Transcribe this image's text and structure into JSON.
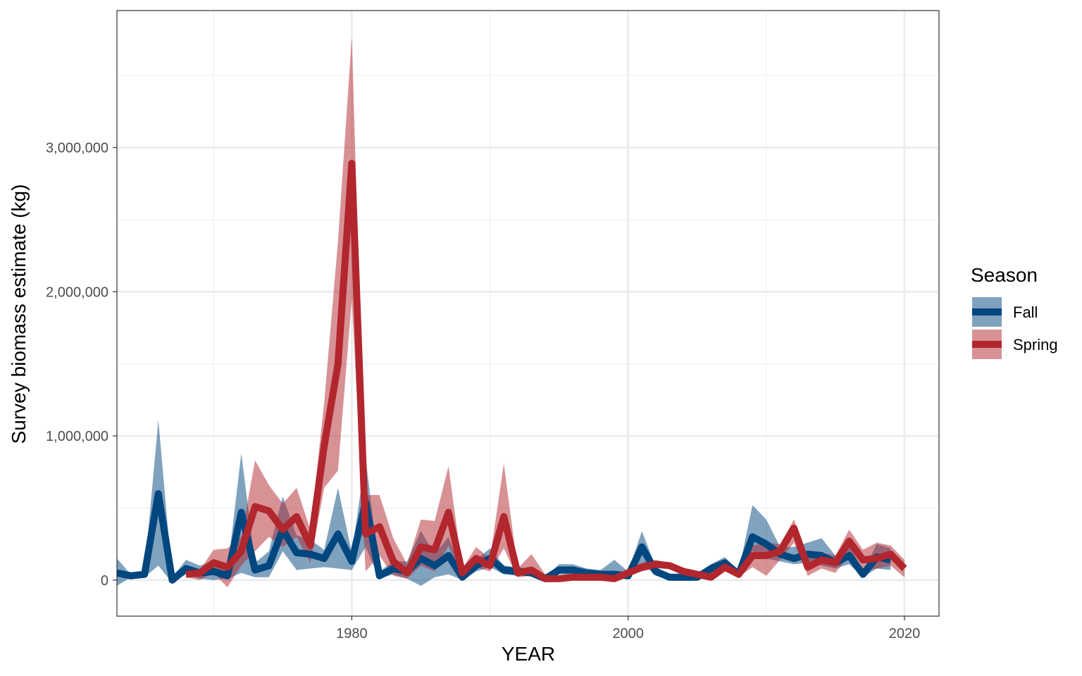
{
  "chart_data": {
    "type": "line",
    "xlabel": "YEAR",
    "ylabel": "Survey biomass estimate (kg)",
    "xlim": [
      1963,
      2022.5
    ],
    "ylim": [
      -250000,
      3950000
    ],
    "x_ticks": [
      1980,
      2000,
      2020
    ],
    "x_tick_labels": [
      "1980",
      "2000",
      "2020"
    ],
    "x_minor_ticks": [
      1970,
      1990,
      2010
    ],
    "y_ticks": [
      0,
      1000000,
      2000000,
      3000000
    ],
    "y_tick_labels": [
      "0",
      "1,000,000",
      "2,000,000",
      "3,000,000"
    ],
    "y_minor_ticks": [
      500000,
      1500000,
      2500000,
      3500000
    ],
    "grid": true,
    "legend": {
      "title": "Season",
      "position": "right"
    },
    "series": [
      {
        "name": "Fall",
        "color": "#00467f",
        "ribbon_color": "#00467f",
        "x": [
          1963,
          1964,
          1965,
          1966,
          1967,
          1968,
          1969,
          1970,
          1971,
          1972,
          1973,
          1974,
          1975,
          1976,
          1977,
          1978,
          1979,
          1980,
          1981,
          1982,
          1983,
          1984,
          1985,
          1986,
          1987,
          1988,
          1989,
          1990,
          1991,
          1992,
          1993,
          1994,
          1995,
          1996,
          1997,
          1998,
          1999,
          2000,
          2001,
          2002,
          2003,
          2004,
          2005,
          2006,
          2007,
          2008,
          2009,
          2010,
          2011,
          2012,
          2013,
          2014,
          2015,
          2016,
          2017,
          2018,
          2019
        ],
        "values": [
          50000,
          30000,
          40000,
          600000,
          0,
          80000,
          50000,
          60000,
          30000,
          470000,
          70000,
          100000,
          350000,
          190000,
          180000,
          150000,
          320000,
          130000,
          540000,
          30000,
          80000,
          60000,
          150000,
          100000,
          170000,
          20000,
          100000,
          150000,
          70000,
          60000,
          50000,
          10000,
          70000,
          70000,
          50000,
          40000,
          40000,
          30000,
          230000,
          60000,
          20000,
          20000,
          20000,
          80000,
          120000,
          40000,
          300000,
          250000,
          180000,
          150000,
          180000,
          170000,
          120000,
          170000,
          40000,
          160000,
          140000
        ],
        "lower": [
          -40000,
          20000,
          20000,
          100000,
          -20000,
          40000,
          10000,
          0,
          10000,
          50000,
          20000,
          20000,
          200000,
          70000,
          80000,
          90000,
          80000,
          70000,
          230000,
          10000,
          40000,
          10000,
          -40000,
          20000,
          40000,
          0,
          60000,
          90000,
          40000,
          30000,
          30000,
          0,
          40000,
          40000,
          30000,
          20000,
          20000,
          10000,
          120000,
          30000,
          10000,
          10000,
          10000,
          50000,
          80000,
          20000,
          200000,
          150000,
          130000,
          110000,
          120000,
          100000,
          80000,
          110000,
          20000,
          80000,
          70000
        ],
        "upper": [
          150000,
          40000,
          60000,
          1110000,
          20000,
          140000,
          100000,
          130000,
          60000,
          880000,
          120000,
          200000,
          580000,
          310000,
          280000,
          210000,
          640000,
          190000,
          850000,
          60000,
          130000,
          130000,
          340000,
          180000,
          300000,
          40000,
          140000,
          220000,
          100000,
          90000,
          80000,
          20000,
          110000,
          110000,
          80000,
          70000,
          140000,
          60000,
          340000,
          90000,
          40000,
          40000,
          40000,
          110000,
          160000,
          60000,
          520000,
          420000,
          230000,
          230000,
          260000,
          290000,
          170000,
          250000,
          60000,
          250000,
          220000
        ]
      },
      {
        "name": "Spring",
        "color": "#b2262e",
        "ribbon_color": "#b2262e",
        "x": [
          1968,
          1969,
          1970,
          1971,
          1972,
          1973,
          1974,
          1975,
          1976,
          1977,
          1978,
          1979,
          1980,
          1981,
          1982,
          1983,
          1984,
          1985,
          1986,
          1987,
          1988,
          1989,
          1990,
          1991,
          1992,
          1993,
          1994,
          1995,
          1996,
          1997,
          1998,
          1999,
          2000,
          2001,
          2002,
          2003,
          2004,
          2005,
          2006,
          2007,
          2008,
          2009,
          2010,
          2011,
          2012,
          2013,
          2014,
          2015,
          2016,
          2017,
          2018,
          2019,
          2020
        ],
        "values": [
          40000,
          50000,
          120000,
          90000,
          200000,
          510000,
          480000,
          350000,
          440000,
          240000,
          930000,
          1500000,
          2890000,
          320000,
          370000,
          130000,
          50000,
          230000,
          210000,
          470000,
          50000,
          150000,
          100000,
          440000,
          50000,
          70000,
          10000,
          10000,
          20000,
          20000,
          20000,
          10000,
          50000,
          90000,
          110000,
          100000,
          60000,
          40000,
          20000,
          90000,
          40000,
          170000,
          170000,
          200000,
          360000,
          90000,
          140000,
          120000,
          270000,
          140000,
          150000,
          180000,
          80000
        ],
        "lower": [
          20000,
          0,
          50000,
          -50000,
          100000,
          200000,
          300000,
          230000,
          300000,
          120000,
          640000,
          760000,
          1950000,
          60000,
          170000,
          30000,
          10000,
          100000,
          60000,
          240000,
          20000,
          90000,
          60000,
          220000,
          20000,
          30000,
          0,
          0,
          10000,
          10000,
          10000,
          0,
          30000,
          60000,
          80000,
          80000,
          40000,
          20000,
          0,
          60000,
          20000,
          90000,
          30000,
          140000,
          260000,
          30000,
          80000,
          50000,
          170000,
          70000,
          80000,
          100000,
          20000
        ],
        "upper": [
          60000,
          70000,
          210000,
          220000,
          300000,
          830000,
          660000,
          530000,
          640000,
          350000,
          1230000,
          2350000,
          3770000,
          590000,
          590000,
          290000,
          110000,
          420000,
          410000,
          790000,
          80000,
          230000,
          150000,
          810000,
          80000,
          180000,
          40000,
          30000,
          40000,
          40000,
          40000,
          30000,
          80000,
          120000,
          140000,
          120000,
          80000,
          60000,
          40000,
          120000,
          60000,
          240000,
          260000,
          250000,
          420000,
          150000,
          190000,
          170000,
          350000,
          210000,
          260000,
          240000,
          140000
        ]
      }
    ]
  }
}
